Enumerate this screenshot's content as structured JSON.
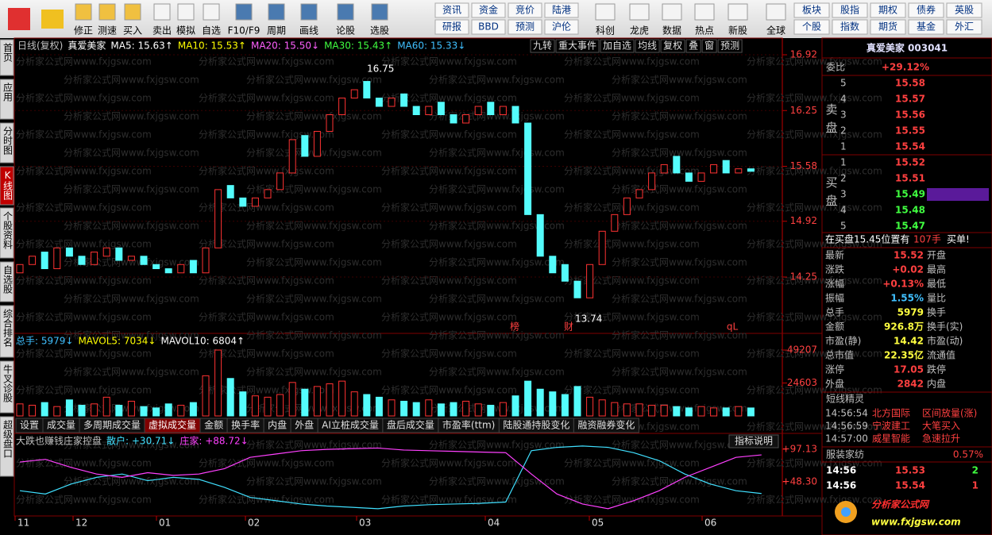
{
  "toolbar": {
    "icons": [
      "修正",
      "测速",
      "买入",
      "卖出",
      "模拟",
      "自选",
      "F10/F9",
      "周期",
      "画线",
      "论股",
      "选股"
    ],
    "grid1": [
      "资讯",
      "资金",
      "竞价",
      "陆港",
      "研报",
      "BBD",
      "预测",
      "沪伦"
    ],
    "icons2": [
      "科创",
      "龙虎",
      "数据",
      "热点",
      "新股",
      "全球"
    ],
    "grid2": [
      "板块",
      "股指",
      "期权",
      "债券",
      "英股",
      "个股",
      "指数",
      "期货",
      "基金",
      "外汇"
    ]
  },
  "side_tabs": [
    "首页",
    "应用",
    "分时图",
    "K线图",
    "个股资料",
    "自选股",
    "综合排名",
    "牛叉诊股",
    "超级盘口"
  ],
  "watermark": "分析家公式网www.fxjgsw.com",
  "kline": {
    "header": [
      {
        "text": "日线(复权)",
        "color": "#c0c0c0"
      },
      {
        "text": "真爱美家",
        "color": "#ffffff"
      },
      {
        "text": "MA5: 15.63↑",
        "color": "#ffffff"
      },
      {
        "text": "MA10: 15.53↑",
        "color": "#ffff00"
      },
      {
        "text": "MA20: 15.50↓",
        "color": "#ff60ff"
      },
      {
        "text": "MA30: 15.43↑",
        "color": "#40ff40"
      },
      {
        "text": "MA60: 15.33↓",
        "color": "#40c0ff"
      }
    ],
    "buttons": [
      "九转",
      "重大事件",
      "加自选",
      "均线",
      "复权",
      "叠",
      "窗",
      "预测"
    ],
    "yticks": [
      16.92,
      16.25,
      15.58,
      14.92,
      14.25
    ],
    "annotations": [
      "16.75",
      "13.74",
      "榜",
      "财",
      "qL"
    ],
    "candles": [
      [
        14.3,
        14.4
      ],
      [
        14.4,
        14.5
      ],
      [
        14.55,
        14.35
      ],
      [
        14.35,
        14.6
      ],
      [
        14.6,
        14.5
      ],
      [
        14.5,
        14.4
      ],
      [
        14.4,
        14.55
      ],
      [
        14.5,
        14.6
      ],
      [
        14.6,
        14.45
      ],
      [
        14.45,
        14.5
      ],
      [
        14.5,
        14.4
      ],
      [
        14.4,
        14.35
      ],
      [
        14.35,
        14.3
      ],
      [
        14.3,
        14.4
      ],
      [
        14.45,
        14.3
      ],
      [
        14.3,
        14.6
      ],
      [
        14.6,
        15.3
      ],
      [
        15.35,
        15.2
      ],
      [
        15.2,
        15.1
      ],
      [
        15.1,
        15.2
      ],
      [
        15.2,
        15.3
      ],
      [
        15.3,
        15.5
      ],
      [
        15.5,
        15.9
      ],
      [
        15.95,
        15.7
      ],
      [
        15.7,
        16.0
      ],
      [
        16.0,
        16.2
      ],
      [
        16.2,
        16.4
      ],
      [
        16.4,
        16.5
      ],
      [
        16.6,
        16.4
      ],
      [
        16.4,
        16.3
      ],
      [
        16.3,
        16.4
      ],
      [
        16.45,
        16.3
      ],
      [
        16.3,
        16.2
      ],
      [
        16.2,
        16.3
      ],
      [
        16.35,
        16.2
      ],
      [
        16.2,
        16.1
      ],
      [
        16.1,
        16.2
      ],
      [
        16.2,
        16.3
      ],
      [
        16.35,
        16.2
      ],
      [
        16.2,
        16.3
      ],
      [
        16.3,
        16.1
      ],
      [
        16.1,
        15.0
      ],
      [
        15.0,
        14.5
      ],
      [
        14.5,
        14.3
      ],
      [
        14.4,
        14.2
      ],
      [
        14.2,
        14.0
      ],
      [
        14.0,
        14.4
      ],
      [
        14.4,
        14.8
      ],
      [
        14.8,
        15.0
      ],
      [
        15.0,
        15.2
      ],
      [
        15.2,
        15.3
      ],
      [
        15.3,
        15.5
      ],
      [
        15.5,
        15.6
      ],
      [
        15.7,
        15.5
      ],
      [
        15.5,
        15.4
      ],
      [
        15.4,
        15.5
      ],
      [
        15.5,
        15.6
      ],
      [
        15.65,
        15.5
      ],
      [
        15.5,
        15.55
      ],
      [
        15.55,
        15.52
      ]
    ]
  },
  "volume": {
    "header": [
      {
        "text": "总手: 5979↓",
        "color": "#40c0ff"
      },
      {
        "text": "MAVOL5: 7034↓",
        "color": "#ffff00"
      },
      {
        "text": "MAVOL10: 6804↑",
        "color": "#ffffff"
      }
    ],
    "yticks": [
      49207,
      24603
    ],
    "values": [
      9000,
      8000,
      10000,
      7000,
      12000,
      8000,
      9000,
      14000,
      8000,
      11000,
      7000,
      6000,
      9000,
      8000,
      10000,
      30000,
      49207,
      28000,
      18000,
      15000,
      14000,
      16000,
      25000,
      20000,
      22000,
      24000,
      26000,
      18000,
      16000,
      14000,
      12000,
      11000,
      10000,
      12000,
      9000,
      10000,
      11000,
      9000,
      8000,
      10000,
      15000,
      26000,
      20000,
      18000,
      16000,
      22000,
      14000,
      12000,
      10000,
      9000,
      9000,
      8000,
      8000,
      7000,
      6000,
      7000,
      6000,
      6000,
      7000,
      5979
    ]
  },
  "tabs": {
    "items": [
      "设置",
      "成交量",
      "多周期成交量",
      "虚拟成交量",
      "金额",
      "换手率",
      "内盘",
      "外盘",
      "AI立桩成交量",
      "盘后成交量",
      "市盈率(ttm)",
      "陆股通持股变化",
      "融资融券变化"
    ],
    "help": "指标说明"
  },
  "indicator": {
    "header": [
      {
        "text": "大跌也赚钱庄家控盘",
        "color": "#c0c0c0"
      },
      {
        "text": "散户: +30.71↓",
        "color": "#40e0ff"
      },
      {
        "text": "庄家: +88.72↓",
        "color": "#ff40ff"
      }
    ],
    "yticks": [
      {
        "value": 97.13,
        "label": "+97.13"
      },
      {
        "value": 48.3,
        "label": "+48.30"
      }
    ],
    "series": [
      {
        "color": "#40e0ff",
        "values": [
          35,
          30,
          45,
          55,
          60,
          50,
          55,
          52,
          40,
          25,
          20,
          15,
          12,
          10,
          8,
          12,
          14,
          15,
          16,
          18,
          95,
          100,
          102,
          100,
          92,
          80,
          60,
          45,
          35,
          30.71
        ]
      },
      {
        "color": "#ff40ff",
        "values": [
          78,
          82,
          70,
          60,
          55,
          62,
          58,
          60,
          68,
          85,
          90,
          95,
          97,
          98,
          99,
          96,
          95,
          94,
          93,
          92,
          60,
          30,
          15,
          8,
          20,
          35,
          55,
          70,
          85,
          88.72
        ]
      }
    ]
  },
  "xaxis": [
    "11",
    "12",
    "01",
    "02",
    "03",
    "04",
    "05",
    "06"
  ],
  "quote": {
    "title": "真爱美家 003041",
    "weibi_label": "委比",
    "weibi": "+29.12%",
    "sell_label": "卖盘",
    "buy_label": "买盘",
    "sell": [
      {
        "level": "5",
        "price": 15.58,
        "color": "#ff4040"
      },
      {
        "level": "4",
        "price": 15.57,
        "color": "#ff4040"
      },
      {
        "level": "3",
        "price": 15.56,
        "color": "#ff4040"
      },
      {
        "level": "2",
        "price": 15.55,
        "color": "#ff4040"
      },
      {
        "level": "1",
        "price": 15.54,
        "color": "#ff4040"
      }
    ],
    "buy": [
      {
        "level": "1",
        "price": 15.52,
        "color": "#ff4040"
      },
      {
        "level": "2",
        "price": 15.51,
        "color": "#ff4040"
      },
      {
        "level": "3",
        "price": 15.49,
        "color": "#40ff40"
      },
      {
        "level": "4",
        "price": 15.48,
        "color": "#40ff40"
      },
      {
        "level": "5",
        "price": 15.47,
        "color": "#40ff40"
      }
    ],
    "notice": [
      "在买盘15.45位置有",
      "107手",
      "买单!"
    ],
    "fields": [
      [
        "最新",
        "15.52",
        "开盘"
      ],
      [
        "涨跌",
        "+0.02",
        "最高"
      ],
      [
        "涨幅",
        "+0.13%",
        "最低"
      ],
      [
        "振幅",
        "1.55%",
        "量比"
      ],
      [
        "总手",
        "5979",
        "换手"
      ],
      [
        "金额",
        "926.8万",
        "换手(实)"
      ],
      [
        "市盈(静)",
        "14.42",
        "市盈(动)"
      ],
      [
        "总市值",
        "22.35亿",
        "流通值"
      ],
      [
        "涨停",
        "17.05",
        "跌停"
      ],
      [
        "外盘",
        "2842",
        "内盘"
      ]
    ],
    "sprite_title": "短线精灵",
    "sprite": [
      [
        "14:56:54",
        "北方国际",
        "区间放量(涨)"
      ],
      [
        "14:56:59",
        "宁波建工",
        "大笔买入"
      ],
      [
        "14:57:00",
        "威星智能",
        "急速拉升"
      ]
    ],
    "sector": [
      "服装家纺",
      "0.57%"
    ],
    "ticks": [
      [
        "14:56",
        "15.53",
        "2"
      ],
      [
        "14:56",
        "15.54",
        "1"
      ]
    ],
    "logo": [
      "分析家公式网",
      "www.fxjgsw.com"
    ]
  }
}
